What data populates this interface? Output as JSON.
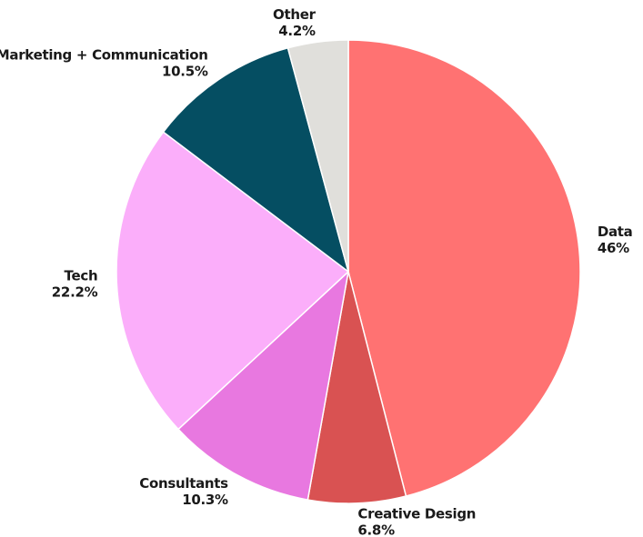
{
  "chart_data": {
    "type": "pie",
    "categories": [
      "Data",
      "Creative Design",
      "Consultants",
      "Tech",
      "Marketing + Communication",
      "Other"
    ],
    "values": [
      46,
      6.8,
      10.3,
      22.2,
      10.5,
      4.2
    ],
    "value_labels": [
      "46%",
      "6.8%",
      "10.3%",
      "22.2%",
      "10.5%",
      "4.2%"
    ],
    "colors": [
      "#ff7272",
      "#d95252",
      "#e878e0",
      "#fbaefa",
      "#054e62",
      "#e0dfdb"
    ]
  }
}
